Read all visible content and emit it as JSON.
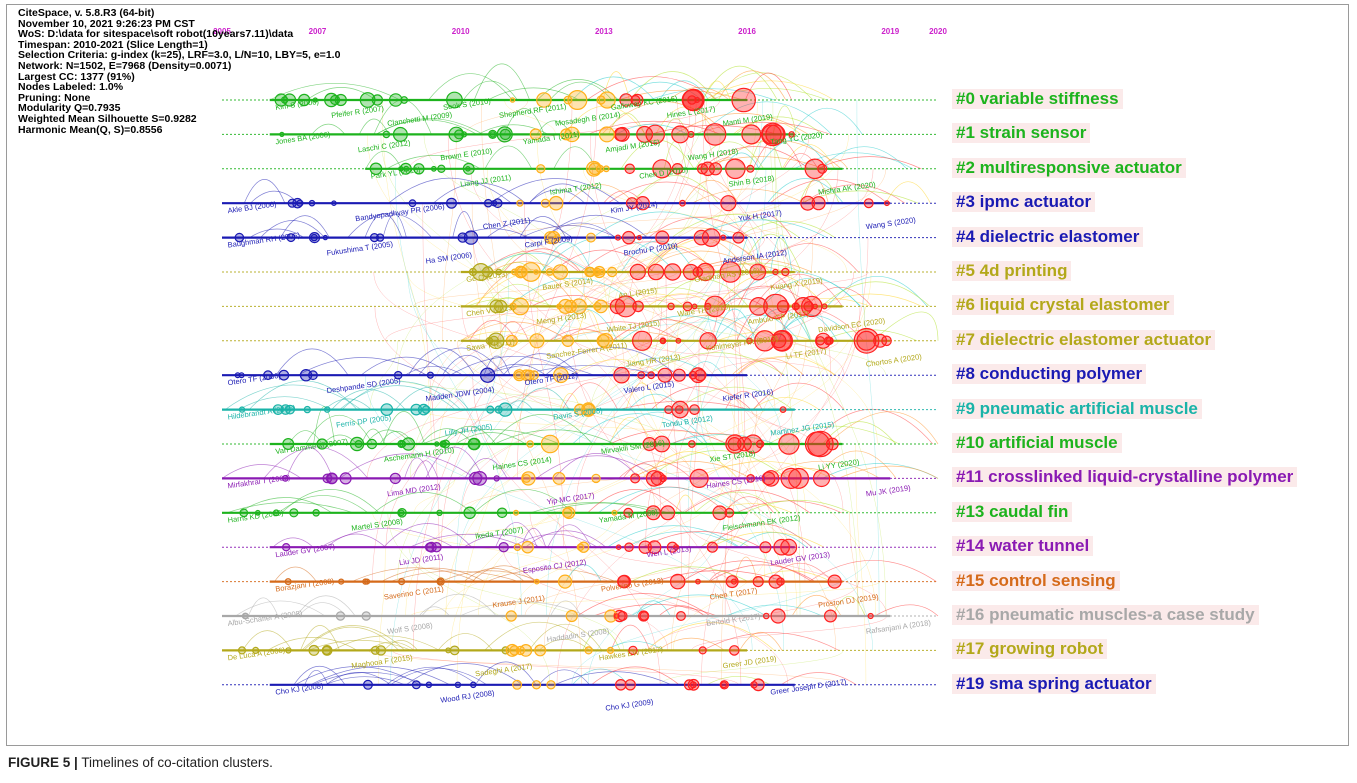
{
  "meta_lines": [
    "CiteSpace, v. 5.8.R3 (64-bit)",
    "November 10, 2021 9:26:23 PM CST",
    "WoS: D:\\data for sitespace\\soft robot(10years7.11)\\data",
    "Timespan: 2010-2021 (Slice Length=1)",
    "Selection Criteria: g-index (k=25), LRF=3.0, L/N=10, LBY=5, e=1.0",
    "Network: N=1502, E=7968 (Density=0.0071)",
    "Largest CC: 1377 (91%)",
    "Nodes Labeled: 1.0%",
    "Pruning: None",
    "Modularity Q=0.7935",
    "Weighted Mean Silhouette S=0.9282",
    "Harmonic Mean(Q, S)=0.8556"
  ],
  "years": [
    {
      "label": "2005",
      "year": 2005
    },
    {
      "label": "2007",
      "year": 2007
    },
    {
      "label": "2010",
      "year": 2010
    },
    {
      "label": "2013",
      "year": 2013
    },
    {
      "label": "2016",
      "year": 2016
    },
    {
      "label": "2019",
      "year": 2019
    },
    {
      "label": "2020",
      "year": 2020
    }
  ],
  "clusters": [
    {
      "label": "#0 variable stiffness",
      "color": "#1db31d",
      "bg": "#fbeaea",
      "start": 2006,
      "size": 1.0,
      "nodes": [
        "Kim S (2006)",
        "Pfeifer R (2007)",
        "Clanchetti M (2009)",
        "Seok S (2010)",
        "Shepherd RF (2011)",
        "Mosadegh B (2014)",
        "Galloway KC (2016)",
        "Hines L (2017)",
        "Manti M (2019)"
      ]
    },
    {
      "label": "#1 strain sensor",
      "color": "#1db31d",
      "bg": "#fbeaea",
      "start": 2006,
      "size": 0.9,
      "nodes": [
        "Jones BA (2006)",
        "Laschi C (2012)",
        "Brown E (2010)",
        "Yamada T (2011)",
        "Amjadi M (2016)",
        "Wang H (2018)",
        "Tang YC (2020)"
      ]
    },
    {
      "label": "#2 multiresponsive actuator",
      "color": "#1db31d",
      "bg": "#fbeaea",
      "start": 2008,
      "size": 0.8,
      "nodes": [
        "Park YL (2016)",
        "Liang JJ (2011)",
        "Ishima T (2012)",
        "Chen D (2015)",
        "Shin B (2018)",
        "Mishra AK (2020)"
      ]
    },
    {
      "label": "#3 ipmc actuator",
      "color": "#1a1ab3",
      "bg": "#fbeaea",
      "start": 2005,
      "size": 0.7,
      "nodes": [
        "Akle BJ (2006)",
        "Bandyopadhyay PR (2006)",
        "Chen Z (2011)",
        "Kim JY (2014)",
        "Yuk H (2017)",
        "Wang S (2020)"
      ]
    },
    {
      "label": "#4 dielectric elastomer",
      "color": "#1a1ab3",
      "bg": "#fbeaea",
      "start": 2005,
      "size": 0.7,
      "nodes": [
        "Baughman RH (2005)",
        "Fukushima T (2005)",
        "Ha SM (2006)",
        "Carpi F (2009)",
        "Brochu P (2010)",
        "Anderson IA (2012)"
      ]
    },
    {
      "label": "#5 4d printing",
      "color": "#b3a81a",
      "bg": "#fbeaea",
      "start": 2010,
      "size": 1.0,
      "nodes": [
        "Ge Q (2013)",
        "Bauer S (2014)",
        "An L (2015)",
        "Gladman AS (2016)",
        "Kuang X (2019)"
      ]
    },
    {
      "label": "#6 liquid crystal elastomer",
      "color": "#b3a81a",
      "bg": "#fbeaea",
      "start": 2010,
      "size": 1.0,
      "nodes": [
        "Chen V (2013)",
        "Meng H (2013)",
        "White TJ (2015)",
        "Ware TH (2015)",
        "Ambulo CP (2017)",
        "Davidson EC (2020)"
      ]
    },
    {
      "label": "#7 dielectric elastomer actuator",
      "color": "#b3a81a",
      "bg": "#fbeaea",
      "start": 2010,
      "size": 0.9,
      "nodes": [
        "Sawa Y (2011)",
        "Sanchez-Ferrer A (2011)",
        "Jiang HR (2013)",
        "Kohlmeyer RR (2013)",
        "Li TF (2017)",
        "Chortos A (2020)"
      ]
    },
    {
      "label": "#8 conducting polymer",
      "color": "#1a1ab3",
      "bg": "#fbeaea",
      "start": 2005,
      "size": 0.8,
      "nodes": [
        "Otero TF (2006)",
        "Deshpande SD (2005)",
        "Madden JDW (2004)",
        "Otero TF (2012)",
        "Valero L (2015)",
        "Kiefer R (2016)"
      ]
    },
    {
      "label": "#9 pneumatic artificial muscle",
      "color": "#1ab3a8",
      "bg": "#fbeaea",
      "start": 2005,
      "size": 0.7,
      "nodes": [
        "Hildebrandt A (2005)",
        "Ferris DP (2005)",
        "Lilly JH (2005)",
        "Davis S (2008)",
        "Tondu B (2012)",
        "Martinez JG (2015)"
      ]
    },
    {
      "label": "#10 artificial muscle",
      "color": "#1db31d",
      "bg": "#fbeaea",
      "start": 2006,
      "size": 1.0,
      "nodes": [
        "Van Damme M (2007)",
        "Aschemann H (2010)",
        "Haines CS (2014)",
        "Mirvakili SM (2016)",
        "Xie ST (2018)",
        "Li YY (2020)"
      ]
    },
    {
      "label": "#11 crosslinked liquid-crystalline polymer",
      "color": "#8a1ab3",
      "bg": "#fbeaea",
      "start": 2005,
      "size": 0.8,
      "nodes": [
        "Mirfakhrai T (2007)",
        "Lima MD (2012)",
        "Yip MC (2017)",
        "Haines CS (2016)",
        "Mu JK (2019)"
      ]
    },
    {
      "label": "#13 caudal fin",
      "color": "#1db31d",
      "bg": "#fbeaea",
      "start": 2005,
      "size": 0.6,
      "nodes": [
        "Harris KD (2005)",
        "Martel S (2008)",
        "Ikeda T (2007)",
        "Yamada M (2008)",
        "Fleischmann EK (2012)"
      ]
    },
    {
      "label": "#14 water tunnel",
      "color": "#8a1ab3",
      "bg": "#fbeaea",
      "start": 2006,
      "size": 0.6,
      "nodes": [
        "Lauder GV (2007)",
        "Liu JD (2011)",
        "Esposito CJ (2012)",
        "Wen L (2013)",
        "Lauder GV (2013)"
      ]
    },
    {
      "label": "#15 control sensing",
      "color": "#d56a1a",
      "bg": "#fbeaea",
      "start": 2006,
      "size": 0.6,
      "nodes": [
        "Borazjani I (2008)",
        "Saverino C (2011)",
        "Krause J (2011)",
        "Polverino G (2012)",
        "Chen T (2017)",
        "Proston DJ (2019)"
      ]
    },
    {
      "label": "#16 pneumatic muscles-a case study",
      "color": "#a8a8a8",
      "bg": "#fbeaea",
      "start": 2005,
      "size": 0.5,
      "nodes": [
        "Albu-Schaffer A (2008)",
        "Wolf S (2008)",
        "Haddadin S (2008)",
        "Bertold K (2017)",
        "Rafsanjani A (2018)"
      ]
    },
    {
      "label": "#17 growing robot",
      "color": "#b3a81a",
      "bg": "#fbeaea",
      "start": 2005,
      "size": 0.7,
      "nodes": [
        "De Luca A (2006)",
        "Maghooa F (2015)",
        "Sadeghi A (2017)",
        "Hawkes EW (2017)",
        "Greer JD (2019)"
      ]
    },
    {
      "label": "#19 sma spring actuator",
      "color": "#1a1ab3",
      "bg": "#fbeaea",
      "start": 2006,
      "size": 0.5,
      "nodes": [
        "Cho KJ (2008)",
        "Wood RJ (2008)",
        "Cho KJ (2009)",
        "Greer Joseph D (2017)"
      ]
    }
  ],
  "caption": {
    "bold": "FIGURE 5 |",
    "text": "Timelines of co-citation clusters."
  }
}
